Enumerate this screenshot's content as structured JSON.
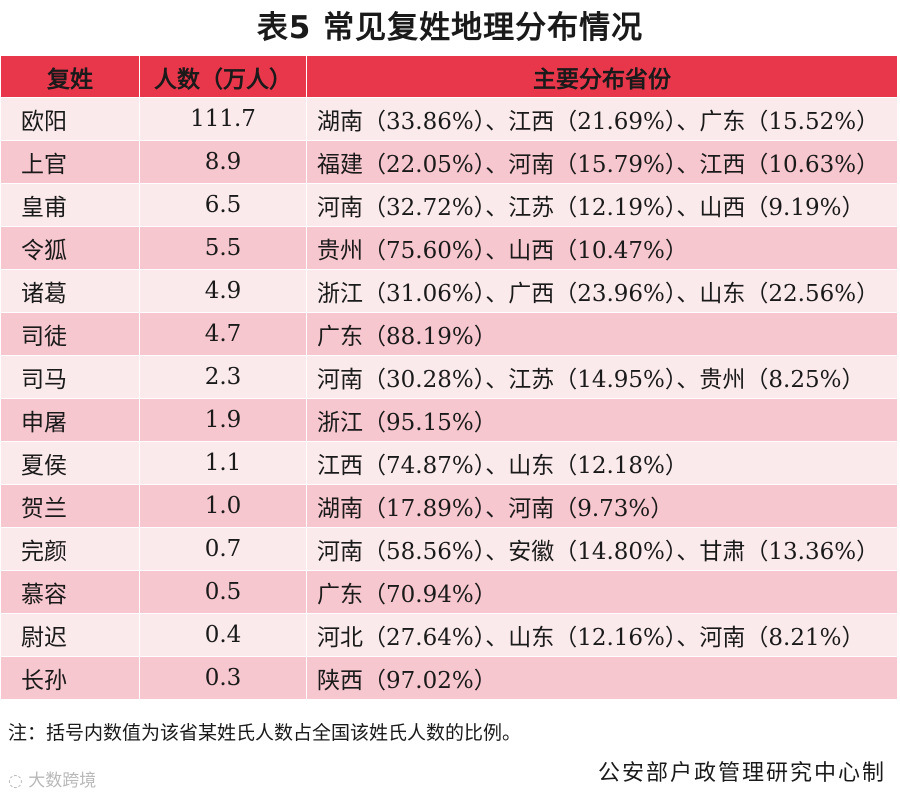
{
  "title": "表5  常见复姓地理分布情况",
  "table": {
    "headers": [
      "复姓",
      "人数（万人）",
      "主要分布省份"
    ],
    "rows": [
      {
        "surname": "欧阳",
        "population": "111.7",
        "provinces": "湖南（33.86%）、江西（21.69%）、广东（15.52%）"
      },
      {
        "surname": "上官",
        "population": "8.9",
        "provinces": "福建（22.05%）、河南（15.79%）、江西（10.63%）"
      },
      {
        "surname": "皇甫",
        "population": "6.5",
        "provinces": "河南（32.72%）、江苏（12.19%）、山西（9.19%）"
      },
      {
        "surname": "令狐",
        "population": "5.5",
        "provinces": "贵州（75.60%）、山西（10.47%）"
      },
      {
        "surname": "诸葛",
        "population": "4.9",
        "provinces": "浙江（31.06%）、广西（23.96%）、山东（22.56%）"
      },
      {
        "surname": "司徒",
        "population": "4.7",
        "provinces": "广东（88.19%）"
      },
      {
        "surname": "司马",
        "population": "2.3",
        "provinces": "河南（30.28%）、江苏（14.95%）、贵州（8.25%）"
      },
      {
        "surname": "申屠",
        "population": "1.9",
        "provinces": "浙江（95.15%）"
      },
      {
        "surname": "夏侯",
        "population": "1.1",
        "provinces": "江西（74.87%）、山东（12.18%）"
      },
      {
        "surname": "贺兰",
        "population": "1.0",
        "provinces": "湖南（17.89%）、河南（9.73%）"
      },
      {
        "surname": "完颜",
        "population": "0.7",
        "provinces": "河南（58.56%）、安徽（14.80%）、甘肃（13.36%）"
      },
      {
        "surname": "慕容",
        "population": "0.5",
        "provinces": "广东（70.94%）"
      },
      {
        "surname": "尉迟",
        "population": "0.4",
        "provinces": "河北（27.64%）、山东（12.16%）、河南（8.21%）"
      },
      {
        "surname": "长孙",
        "population": "0.3",
        "provinces": "陕西（97.02%）"
      }
    ]
  },
  "note": "注：括号内数值为该省某姓氏人数占全国该姓氏人数的比例。",
  "credit": "公安部户政管理研究中心制",
  "watermark": "大数跨境",
  "colors": {
    "header": "#e8374b",
    "row_light": "#fbeaec",
    "row_dark": "#f6c7ce"
  }
}
